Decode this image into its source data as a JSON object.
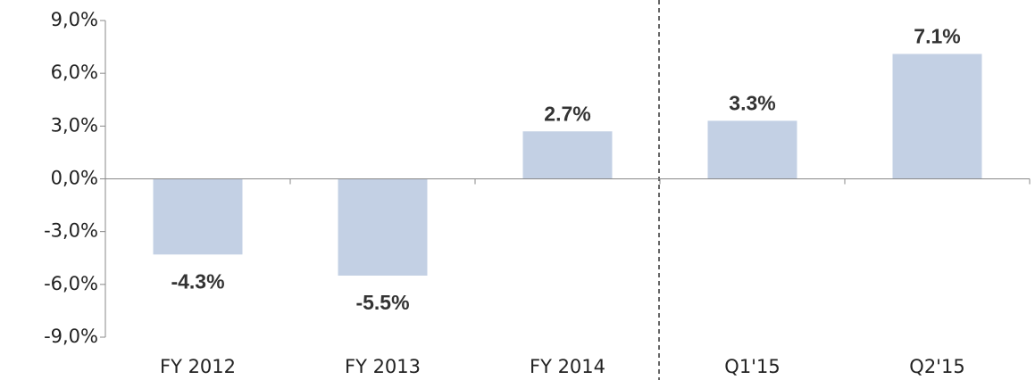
{
  "chart_data": {
    "type": "bar",
    "categories": [
      "FY 2012",
      "FY 2013",
      "FY 2014",
      "Q1'15",
      "Q2'15"
    ],
    "values": [
      -4.3,
      -5.5,
      2.7,
      3.3,
      7.1
    ],
    "value_labels": [
      "-4.3%",
      "-5.5%",
      "2.7%",
      "3.3%",
      "7.1%"
    ],
    "color": "#c3d0e4",
    "ylim": [
      -9,
      9
    ],
    "yticks": [
      {
        "value": -9,
        "label": "-9,0%"
      },
      {
        "value": -6,
        "label": "-6,0%"
      },
      {
        "value": -3,
        "label": "-3,0%"
      },
      {
        "value": 0,
        "label": "0,0%"
      },
      {
        "value": 3,
        "label": "3,0%"
      },
      {
        "value": 6,
        "label": "6,0%"
      },
      {
        "value": 9,
        "label": "9,0%"
      }
    ]
  }
}
